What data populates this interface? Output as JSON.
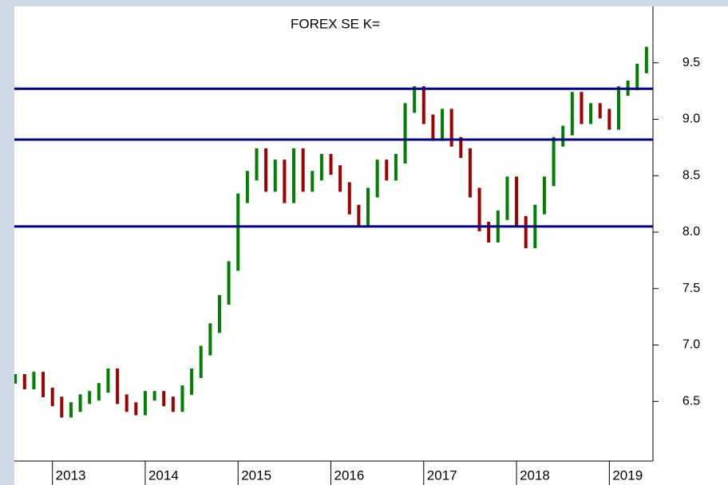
{
  "chart_data": {
    "type": "range-bar",
    "title": "FOREX SE K=",
    "x": [
      2012.6,
      2012.7,
      2012.8,
      2012.9,
      2013.0,
      2013.1,
      2013.2,
      2013.3,
      2013.4,
      2013.5,
      2013.6,
      2013.7,
      2013.8,
      2013.9,
      2014.0,
      2014.1,
      2014.2,
      2014.3,
      2014.4,
      2014.5,
      2014.6,
      2014.7,
      2014.8,
      2014.9,
      2015.0,
      2015.1,
      2015.2,
      2015.3,
      2015.4,
      2015.5,
      2015.6,
      2015.7,
      2015.8,
      2015.9,
      2016.0,
      2016.1,
      2016.2,
      2016.3,
      2016.4,
      2016.5,
      2016.6,
      2016.7,
      2016.8,
      2016.9,
      2017.0,
      2017.1,
      2017.2,
      2017.3,
      2017.4,
      2017.5,
      2017.6,
      2017.7,
      2017.8,
      2017.9,
      2018.0,
      2018.1,
      2018.2,
      2018.3,
      2018.4,
      2018.5,
      2018.6,
      2018.7,
      2018.8,
      2018.9,
      2019.0,
      2019.1,
      2019.2,
      2019.3,
      2019.4
    ],
    "series": [
      {
        "up_color": "#008000",
        "down_color": "#a00000",
        "values": [
          6.7,
          6.65,
          6.72,
          6.58,
          6.5,
          6.4,
          6.45,
          6.52,
          6.55,
          6.62,
          6.75,
          6.52,
          6.45,
          6.42,
          6.55,
          6.55,
          6.5,
          6.45,
          6.6,
          6.75,
          6.95,
          7.15,
          7.4,
          7.7,
          8.3,
          8.5,
          8.7,
          8.4,
          8.6,
          8.3,
          8.7,
          8.4,
          8.5,
          8.65,
          8.55,
          8.4,
          8.2,
          8.1,
          8.35,
          8.6,
          8.5,
          8.65,
          9.1,
          9.25,
          9.0,
          8.85,
          9.05,
          8.8,
          8.7,
          8.35,
          8.05,
          7.95,
          8.15,
          8.45,
          8.1,
          7.9,
          8.2,
          8.45,
          8.8,
          8.9,
          9.2,
          9.0,
          9.1,
          9.05,
          8.95,
          9.25,
          9.3,
          9.45,
          9.6
        ]
      }
    ],
    "hlines": [
      9.27,
      8.82,
      8.05
    ],
    "hline_color": "#00008b",
    "xlim": [
      2012.59,
      2019.47
    ],
    "xticks": [
      2013,
      2014,
      2015,
      2016,
      2017,
      2018,
      2019
    ],
    "ylim": [
      6.0,
      10.0
    ],
    "yticks": [
      6.5,
      {
        "value": 7,
        "label": "7.0"
      },
      7.5,
      {
        "value": 8,
        "label": "8.0"
      },
      8.5,
      {
        "value": 9,
        "label": "9.0"
      },
      9.5
    ]
  }
}
